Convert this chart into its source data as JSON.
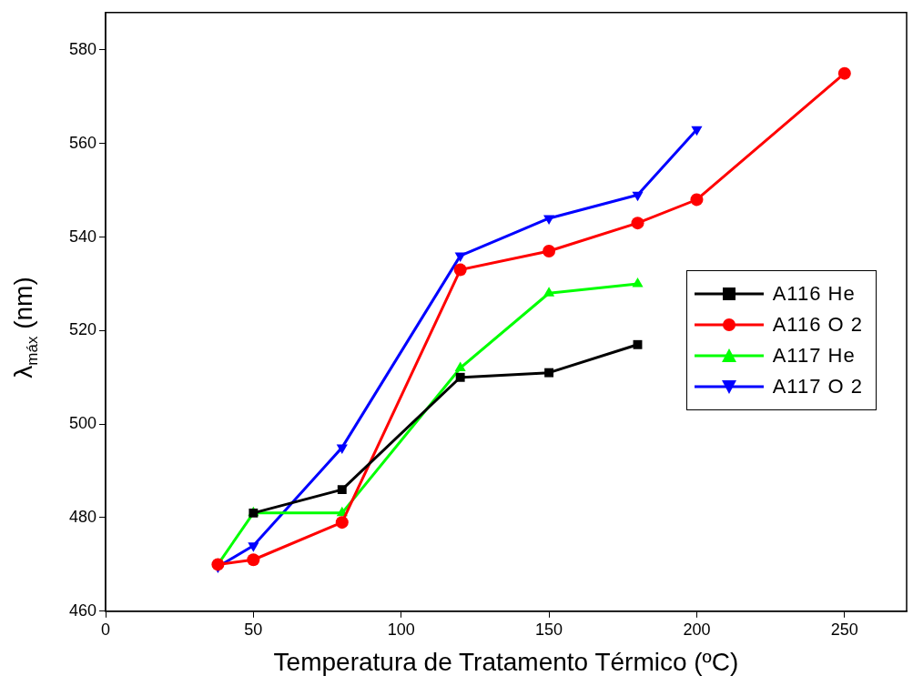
{
  "chart_data": {
    "type": "line",
    "xlabel": "Temperatura de Tratamento Térmico (ºC)",
    "ylabel": "λ$_{máx}$ (nm)",
    "xlim": [
      0,
      271
    ],
    "xticks": [
      0,
      50,
      100,
      150,
      200,
      250
    ],
    "ylim": [
      460,
      588
    ],
    "yticks": [
      460,
      480,
      500,
      520,
      540,
      560,
      580
    ],
    "grid": false,
    "legend": "right",
    "line_style": "solid",
    "series": [
      {
        "name": "A116 He",
        "color": "#000000",
        "marker": "square",
        "x": [
          50,
          80,
          120,
          150,
          180
        ],
        "values": [
          481,
          486,
          510,
          511,
          517
        ]
      },
      {
        "name": "A116 O 2",
        "color": "#ff0000",
        "marker": "circle",
        "x": [
          38,
          50,
          80,
          120,
          150,
          180,
          200,
          250
        ],
        "values": [
          470,
          471,
          479,
          533,
          537,
          543,
          548,
          575
        ]
      },
      {
        "name": "A117 He",
        "color": "#00ff00",
        "marker": "triangle",
        "x": [
          38,
          50,
          80,
          120,
          150,
          180
        ],
        "values": [
          470,
          481,
          481,
          512,
          528,
          530
        ]
      },
      {
        "name": "A117 O 2",
        "color": "#0000ff",
        "marker": "triangle_down",
        "x": [
          38,
          50,
          80,
          120,
          150,
          180,
          200
        ],
        "values": [
          469.5,
          474,
          495,
          536,
          544,
          549,
          563
        ]
      }
    ]
  }
}
